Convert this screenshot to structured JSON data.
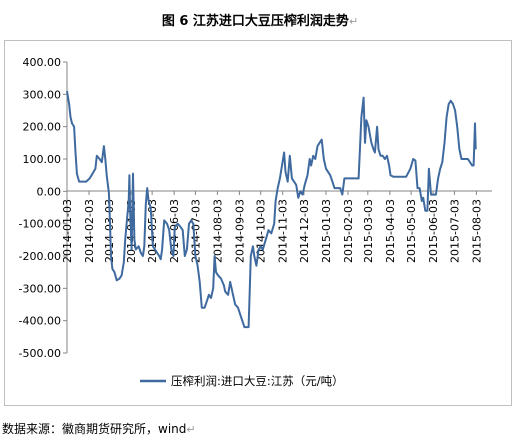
{
  "figure_title": "图 6  江苏进口大豆压榨利润走势",
  "source_text": "数据来源：徽商期货研究所，wind",
  "colors": {
    "line": "#3f6a9f",
    "axis": "#868686",
    "frame": "#bfbfbf"
  },
  "chart_data": {
    "type": "line",
    "title": "图 6  江苏进口大豆压榨利润走势",
    "xlabel": "",
    "ylabel": "",
    "ylim": [
      -500,
      400
    ],
    "yticks": [
      {
        "value": 400,
        "label": "400.00"
      },
      {
        "value": 300,
        "label": "300.00"
      },
      {
        "value": 200,
        "label": "200.00"
      },
      {
        "value": 100,
        "label": "100.00"
      },
      {
        "value": 0,
        "label": "0.00"
      },
      {
        "value": -100,
        "label": "-100.00"
      },
      {
        "value": -200,
        "label": "-200.00"
      },
      {
        "value": -300,
        "label": "-300.00"
      },
      {
        "value": -400,
        "label": "-400.00"
      },
      {
        "value": -500,
        "label": "-500.00"
      }
    ],
    "xlim": [
      "2014-01-03",
      "2015-08-25"
    ],
    "xticks": [
      "2014-01-03",
      "2014-02-03",
      "2014-03-03",
      "2014-04-03",
      "2014-05-03",
      "2014-06-03",
      "2014-07-03",
      "2014-08-03",
      "2014-09-03",
      "2014-10-03",
      "2014-11-03",
      "2014-12-03",
      "2015-01-03",
      "2015-02-03",
      "2015-03-03",
      "2015-04-03",
      "2015-05-03",
      "2015-06-03",
      "2015-07-03",
      "2015-08-03"
    ],
    "grid": false,
    "legend_position": "bottom",
    "series": [
      {
        "name": "压榨利润:进口大豆:江苏（元/吨）",
        "points": [
          [
            "2014-01-03",
            310
          ],
          [
            "2014-01-06",
            270
          ],
          [
            "2014-01-08",
            230
          ],
          [
            "2014-01-10",
            210
          ],
          [
            "2014-01-13",
            200
          ],
          [
            "2014-01-15",
            120
          ],
          [
            "2014-01-17",
            55
          ],
          [
            "2014-01-20",
            30
          ],
          [
            "2014-01-24",
            30
          ],
          [
            "2014-01-30",
            30
          ],
          [
            "2014-02-04",
            40
          ],
          [
            "2014-02-08",
            55
          ],
          [
            "2014-02-12",
            70
          ],
          [
            "2014-02-14",
            110
          ],
          [
            "2014-02-18",
            100
          ],
          [
            "2014-02-21",
            90
          ],
          [
            "2014-02-24",
            140
          ],
          [
            "2014-02-26",
            100
          ],
          [
            "2014-02-28",
            50
          ],
          [
            "2014-03-03",
            -5
          ],
          [
            "2014-03-04",
            -60
          ],
          [
            "2014-03-06",
            -200
          ],
          [
            "2014-03-08",
            -240
          ],
          [
            "2014-03-11",
            -250
          ],
          [
            "2014-03-14",
            -275
          ],
          [
            "2014-03-18",
            -270
          ],
          [
            "2014-03-21",
            -260
          ],
          [
            "2014-03-24",
            -220
          ],
          [
            "2014-03-26",
            -150
          ],
          [
            "2014-03-28",
            -100
          ],
          [
            "2014-03-31",
            -30
          ],
          [
            "2014-04-01",
            50
          ],
          [
            "2014-04-02",
            -60
          ],
          [
            "2014-04-04",
            -180
          ],
          [
            "2014-04-06",
            55
          ],
          [
            "2014-04-08",
            -150
          ],
          [
            "2014-04-10",
            -180
          ],
          [
            "2014-04-14",
            -170
          ],
          [
            "2014-04-17",
            -190
          ],
          [
            "2014-04-20",
            -200
          ],
          [
            "2014-04-22",
            -170
          ],
          [
            "2014-04-24",
            -40
          ],
          [
            "2014-04-26",
            10
          ],
          [
            "2014-04-28",
            -30
          ],
          [
            "2014-05-01",
            -50
          ],
          [
            "2014-05-04",
            -170
          ],
          [
            "2014-05-07",
            -180
          ],
          [
            "2014-05-10",
            -190
          ],
          [
            "2014-05-13",
            -200
          ],
          [
            "2014-05-15",
            -210
          ],
          [
            "2014-05-17",
            -180
          ],
          [
            "2014-05-20",
            -90
          ],
          [
            "2014-05-24",
            -100
          ],
          [
            "2014-05-27",
            -120
          ],
          [
            "2014-05-30",
            -180
          ],
          [
            "2014-06-02",
            -200
          ],
          [
            "2014-06-04",
            -110
          ],
          [
            "2014-06-08",
            -100
          ],
          [
            "2014-06-12",
            -110
          ],
          [
            "2014-06-15",
            -120
          ],
          [
            "2014-06-18",
            -200
          ],
          [
            "2014-06-21",
            -180
          ],
          [
            "2014-06-24",
            -100
          ],
          [
            "2014-06-27",
            -90
          ],
          [
            "2014-06-30",
            -100
          ],
          [
            "2014-07-03",
            -200
          ],
          [
            "2014-07-06",
            -230
          ],
          [
            "2014-07-09",
            -280
          ],
          [
            "2014-07-12",
            -360
          ],
          [
            "2014-07-16",
            -360
          ],
          [
            "2014-07-19",
            -340
          ],
          [
            "2014-07-22",
            -320
          ],
          [
            "2014-07-25",
            -330
          ],
          [
            "2014-07-28",
            -300
          ],
          [
            "2014-07-30",
            -200
          ],
          [
            "2014-08-01",
            -250
          ],
          [
            "2014-08-04",
            -260
          ],
          [
            "2014-08-08",
            -270
          ],
          [
            "2014-08-12",
            -290
          ],
          [
            "2014-08-14",
            -310
          ],
          [
            "2014-08-18",
            -320
          ],
          [
            "2014-08-21",
            -280
          ],
          [
            "2014-08-25",
            -320
          ],
          [
            "2014-08-28",
            -350
          ],
          [
            "2014-09-01",
            -360
          ],
          [
            "2014-09-04",
            -380
          ],
          [
            "2014-09-07",
            -400
          ],
          [
            "2014-09-10",
            -420
          ],
          [
            "2014-09-13",
            -420
          ],
          [
            "2014-09-16",
            -420
          ],
          [
            "2014-09-19",
            -200
          ],
          [
            "2014-09-22",
            -170
          ],
          [
            "2014-09-24",
            -200
          ],
          [
            "2014-09-27",
            -230
          ],
          [
            "2014-09-30",
            -180
          ],
          [
            "2014-10-03",
            -170
          ],
          [
            "2014-10-06",
            -180
          ],
          [
            "2014-10-10",
            -150
          ],
          [
            "2014-10-14",
            -120
          ],
          [
            "2014-10-18",
            -130
          ],
          [
            "2014-10-22",
            -100
          ],
          [
            "2014-10-24",
            -30
          ],
          [
            "2014-10-27",
            10
          ],
          [
            "2014-10-30",
            40
          ],
          [
            "2014-11-02",
            80
          ],
          [
            "2014-11-05",
            120
          ],
          [
            "2014-11-07",
            60
          ],
          [
            "2014-11-10",
            30
          ],
          [
            "2014-11-13",
            110
          ],
          [
            "2014-11-16",
            40
          ],
          [
            "2014-11-19",
            30
          ],
          [
            "2014-11-22",
            20
          ],
          [
            "2014-11-25",
            -20
          ],
          [
            "2014-11-28",
            0
          ],
          [
            "2014-12-01",
            -10
          ],
          [
            "2014-12-04",
            20
          ],
          [
            "2014-12-08",
            50
          ],
          [
            "2014-12-11",
            100
          ],
          [
            "2014-12-13",
            80
          ],
          [
            "2014-12-16",
            110
          ],
          [
            "2014-12-19",
            100
          ],
          [
            "2014-12-22",
            140
          ],
          [
            "2014-12-25",
            150
          ],
          [
            "2014-12-28",
            160
          ],
          [
            "2014-12-31",
            100
          ],
          [
            "2015-01-03",
            70
          ],
          [
            "2015-01-06",
            60
          ],
          [
            "2015-01-09",
            50
          ],
          [
            "2015-01-12",
            30
          ],
          [
            "2015-01-15",
            10
          ],
          [
            "2015-01-19",
            10
          ],
          [
            "2015-01-23",
            10
          ],
          [
            "2015-01-26",
            -10
          ],
          [
            "2015-01-29",
            40
          ],
          [
            "2015-02-02",
            40
          ],
          [
            "2015-02-06",
            40
          ],
          [
            "2015-02-10",
            40
          ],
          [
            "2015-02-14",
            40
          ],
          [
            "2015-02-18",
            40
          ],
          [
            "2015-02-22",
            230
          ],
          [
            "2015-02-25",
            290
          ],
          [
            "2015-02-27",
            150
          ],
          [
            "2015-03-01",
            220
          ],
          [
            "2015-03-04",
            200
          ],
          [
            "2015-03-08",
            150
          ],
          [
            "2015-03-11",
            130
          ],
          [
            "2015-03-13",
            120
          ],
          [
            "2015-03-16",
            200
          ],
          [
            "2015-03-18",
            130
          ],
          [
            "2015-03-21",
            110
          ],
          [
            "2015-03-24",
            110
          ],
          [
            "2015-03-27",
            100
          ],
          [
            "2015-03-30",
            110
          ],
          [
            "2015-04-02",
            80
          ],
          [
            "2015-04-04",
            50
          ],
          [
            "2015-04-08",
            45
          ],
          [
            "2015-04-14",
            45
          ],
          [
            "2015-04-20",
            45
          ],
          [
            "2015-04-26",
            45
          ],
          [
            "2015-05-02",
            70
          ],
          [
            "2015-05-06",
            100
          ],
          [
            "2015-05-09",
            95
          ],
          [
            "2015-05-12",
            10
          ],
          [
            "2015-05-15",
            10
          ],
          [
            "2015-05-18",
            -30
          ],
          [
            "2015-05-20",
            -20
          ],
          [
            "2015-05-23",
            -60
          ],
          [
            "2015-05-26",
            -60
          ],
          [
            "2015-05-28",
            70
          ],
          [
            "2015-05-31",
            -10
          ],
          [
            "2015-06-03",
            -10
          ],
          [
            "2015-06-07",
            -10
          ],
          [
            "2015-06-10",
            40
          ],
          [
            "2015-06-13",
            70
          ],
          [
            "2015-06-16",
            90
          ],
          [
            "2015-06-19",
            150
          ],
          [
            "2015-06-22",
            230
          ],
          [
            "2015-06-25",
            270
          ],
          [
            "2015-06-28",
            280
          ],
          [
            "2015-07-01",
            270
          ],
          [
            "2015-07-04",
            250
          ],
          [
            "2015-07-07",
            200
          ],
          [
            "2015-07-10",
            130
          ],
          [
            "2015-07-13",
            100
          ],
          [
            "2015-07-16",
            100
          ],
          [
            "2015-07-19",
            100
          ],
          [
            "2015-07-22",
            100
          ],
          [
            "2015-07-25",
            90
          ],
          [
            "2015-07-28",
            80
          ],
          [
            "2015-07-30",
            80
          ],
          [
            "2015-08-01",
            210
          ],
          [
            "2015-08-02",
            130
          ]
        ]
      }
    ]
  }
}
